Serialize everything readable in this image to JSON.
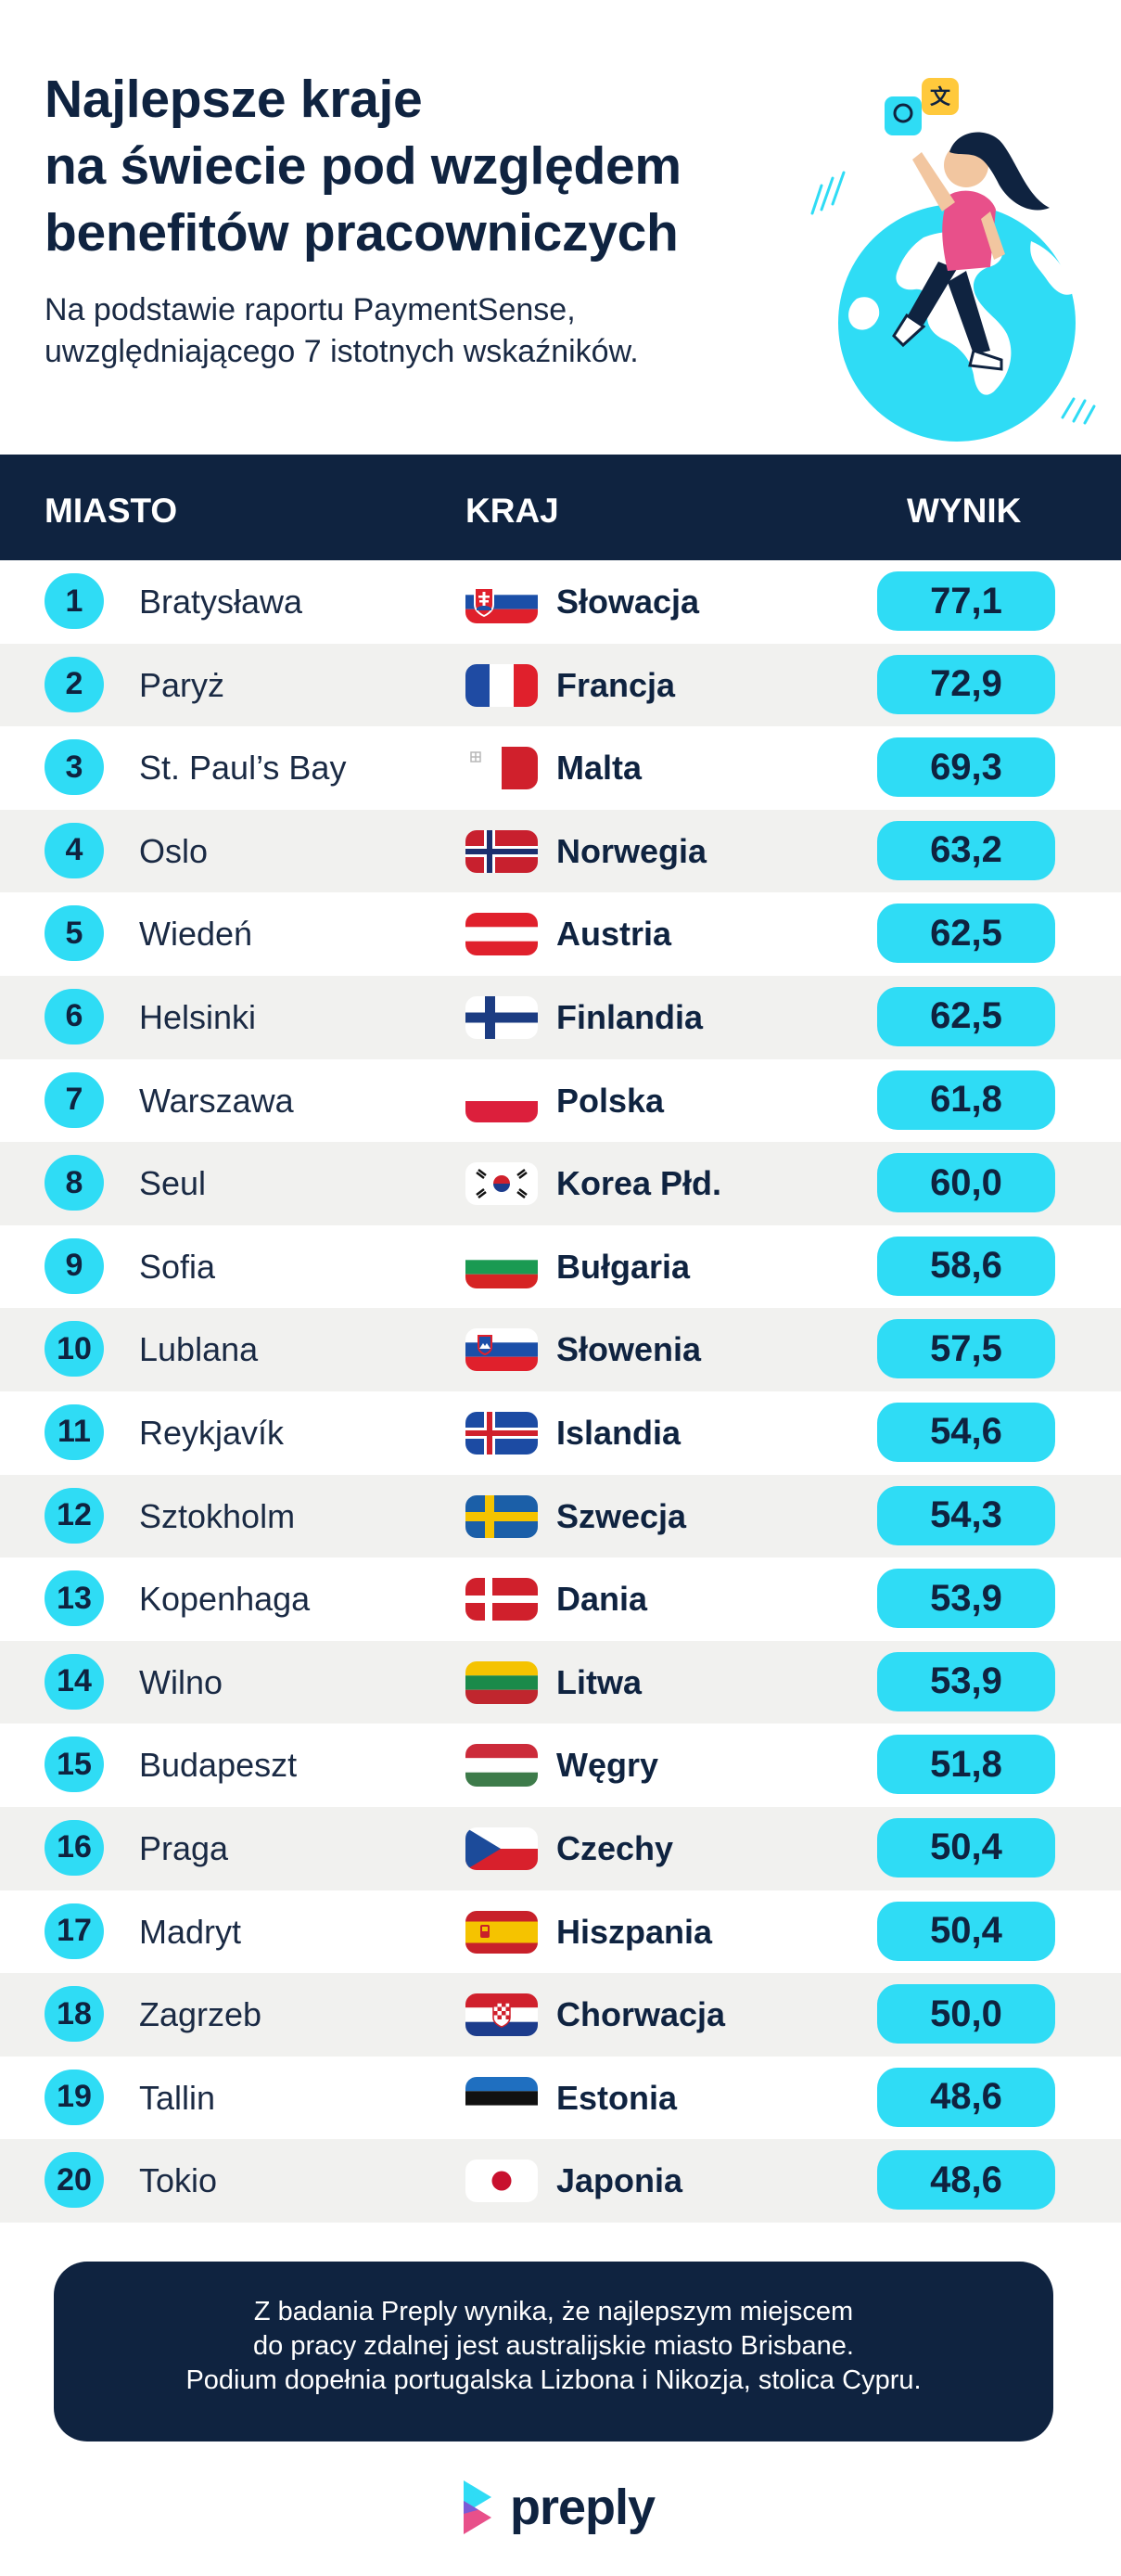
{
  "header": {
    "title_lines": [
      "Najlepsze kraje",
      "na świecie pod względem",
      "benefitów pracowniczych"
    ],
    "subtitle_lines": [
      "Na podstawie raportu PaymentSense,",
      "uwzględniającego 7 istotnych wskaźników."
    ]
  },
  "table": {
    "columns": {
      "city": "MIASTO",
      "country": "KRAJ",
      "score": "WYNIK"
    },
    "rows": [
      {
        "rank": "1",
        "city": "Bratysława",
        "country": "Słowacja",
        "score": "77,1",
        "flag": "slovakia-flag"
      },
      {
        "rank": "2",
        "city": "Paryż",
        "country": "Francja",
        "score": "72,9",
        "flag": "france-flag"
      },
      {
        "rank": "3",
        "city": "St. Paul’s Bay",
        "country": "Malta",
        "score": "69,3",
        "flag": "malta-flag"
      },
      {
        "rank": "4",
        "city": "Oslo",
        "country": "Norwegia",
        "score": "63,2",
        "flag": "norway-flag"
      },
      {
        "rank": "5",
        "city": "Wiedeń",
        "country": "Austria",
        "score": "62,5",
        "flag": "austria-flag"
      },
      {
        "rank": "6",
        "city": "Helsinki",
        "country": "Finlandia",
        "score": "62,5",
        "flag": "finland-flag"
      },
      {
        "rank": "7",
        "city": "Warszawa",
        "country": "Polska",
        "score": "61,8",
        "flag": "poland-flag"
      },
      {
        "rank": "8",
        "city": "Seul",
        "country": "Korea Płd.",
        "score": "60,0",
        "flag": "south-korea-flag"
      },
      {
        "rank": "9",
        "city": "Sofia",
        "country": "Bułgaria",
        "score": "58,6",
        "flag": "bulgaria-flag"
      },
      {
        "rank": "10",
        "city": "Lublana",
        "country": "Słowenia",
        "score": "57,5",
        "flag": "slovenia-flag"
      },
      {
        "rank": "11",
        "city": "Reykjavík",
        "country": "Islandia",
        "score": "54,6",
        "flag": "iceland-flag"
      },
      {
        "rank": "12",
        "city": "Sztokholm",
        "country": "Szwecja",
        "score": "54,3",
        "flag": "sweden-flag"
      },
      {
        "rank": "13",
        "city": "Kopenhaga",
        "country": "Dania",
        "score": "53,9",
        "flag": "denmark-flag"
      },
      {
        "rank": "14",
        "city": "Wilno",
        "country": "Litwa",
        "score": "53,9",
        "flag": "lithuania-flag"
      },
      {
        "rank": "15",
        "city": "Budapeszt",
        "country": "Węgry",
        "score": "51,8",
        "flag": "hungary-flag"
      },
      {
        "rank": "16",
        "city": "Praga",
        "country": "Czechy",
        "score": "50,4",
        "flag": "czechia-flag"
      },
      {
        "rank": "17",
        "city": "Madryt",
        "country": "Hiszpania",
        "score": "50,4",
        "flag": "spain-flag"
      },
      {
        "rank": "18",
        "city": "Zagrzeb",
        "country": "Chorwacja",
        "score": "50,0",
        "flag": "croatia-flag"
      },
      {
        "rank": "19",
        "city": "Tallin",
        "country": "Estonia",
        "score": "48,6",
        "flag": "estonia-flag"
      },
      {
        "rank": "20",
        "city": "Tokio",
        "country": "Japonia",
        "score": "48,6",
        "flag": "japan-flag"
      }
    ]
  },
  "note": {
    "lines": [
      "Z badania Preply wynika, że najlepszym miejscem",
      "do pracy zdalnej jest australijskie miasto Brisbane.",
      "Podium dopełnia portugalska Lizbona i Nikozja, stolica Cypru."
    ]
  },
  "logo": {
    "text": "preply",
    "icon": "preply-logo-icon"
  },
  "colors": {
    "navy": "#0f2340",
    "cyan": "#2fdcf5",
    "stripe": "#f1f1ef"
  }
}
